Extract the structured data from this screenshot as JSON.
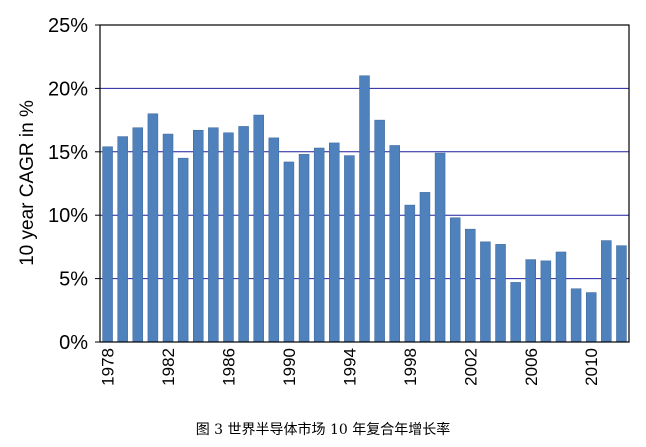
{
  "caption": "图 3 世界半导体市场 10 年复合年增长率",
  "chart_data": {
    "type": "bar",
    "ylabel": "10 year CAGR in %",
    "xlabel": "",
    "ylim": [
      0,
      25
    ],
    "y_ticks": [
      "0%",
      "5%",
      "10%",
      "15%",
      "20%",
      "25%"
    ],
    "y_tick_values": [
      0,
      5,
      10,
      15,
      20,
      25
    ],
    "x_tick_labels": [
      "1978",
      "1982",
      "1986",
      "1990",
      "1994",
      "1998",
      "2002",
      "2006",
      "2010"
    ],
    "grid": "horizontal",
    "bar_color": "#4f81bd",
    "grid_color": "#1f1fa0",
    "categories": [
      1978,
      1979,
      1980,
      1981,
      1982,
      1983,
      1984,
      1985,
      1986,
      1987,
      1988,
      1989,
      1990,
      1991,
      1992,
      1993,
      1994,
      1995,
      1996,
      1997,
      1998,
      1999,
      2000,
      2001,
      2002,
      2003,
      2004,
      2005,
      2006,
      2007,
      2008,
      2009,
      2010,
      2011,
      2012
    ],
    "values": [
      15.4,
      16.2,
      16.9,
      18.0,
      16.4,
      14.5,
      16.7,
      16.9,
      16.5,
      17.0,
      17.9,
      16.1,
      14.2,
      14.8,
      15.3,
      15.7,
      14.7,
      21.0,
      17.5,
      15.5,
      10.8,
      11.8,
      14.9,
      9.8,
      8.9,
      7.9,
      7.7,
      4.7,
      6.5,
      6.4,
      7.1,
      4.2,
      3.9,
      8.0,
      7.6
    ]
  }
}
